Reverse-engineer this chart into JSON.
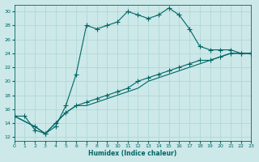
{
  "xlabel": "Humidex (Indice chaleur)",
  "bg_color": "#cce8e8",
  "grid_color": "#b0d8d8",
  "line_color": "#006666",
  "xlim": [
    0,
    23
  ],
  "ylim": [
    11.5,
    31
  ],
  "yticks": [
    12,
    14,
    16,
    18,
    20,
    22,
    24,
    26,
    28,
    30
  ],
  "xticks": [
    0,
    1,
    2,
    3,
    4,
    5,
    6,
    7,
    8,
    9,
    10,
    11,
    12,
    13,
    14,
    15,
    16,
    17,
    18,
    19,
    20,
    21,
    22,
    23
  ],
  "line1_x": [
    0,
    1,
    2,
    3,
    4,
    5,
    6,
    7,
    8,
    9,
    10,
    11,
    12,
    13,
    14,
    15,
    16,
    17,
    18,
    19,
    20,
    21,
    22,
    23
  ],
  "line1_y": [
    15,
    15,
    13,
    12.5,
    13.5,
    16.5,
    21,
    28,
    27.5,
    28,
    28.5,
    30,
    29.5,
    29,
    29.5,
    30.5,
    29.5,
    27.5,
    25,
    24.5,
    24.5,
    24.5,
    24,
    24
  ],
  "line2_x": [
    0,
    2,
    3,
    4,
    5,
    6,
    7,
    8,
    9,
    10,
    11,
    12,
    13,
    14,
    15,
    16,
    17,
    18,
    19,
    20,
    21,
    22,
    23
  ],
  "line2_y": [
    15,
    13.5,
    12.5,
    14,
    15.5,
    16.5,
    17,
    17.5,
    18,
    18.5,
    19,
    20,
    20.5,
    21,
    21.5,
    22,
    22.5,
    23,
    23,
    23.5,
    24,
    24,
    24
  ],
  "line3_x": [
    0,
    2,
    3,
    4,
    5,
    6,
    7,
    8,
    9,
    10,
    11,
    12,
    13,
    14,
    15,
    16,
    17,
    18,
    19,
    20,
    21,
    22,
    23
  ],
  "line3_y": [
    15,
    13.5,
    12.5,
    14,
    15.5,
    16.5,
    16.5,
    17,
    17.5,
    18,
    18.5,
    19,
    20,
    20.5,
    21,
    21.5,
    22,
    22.5,
    23,
    23.5,
    24,
    24,
    24
  ]
}
